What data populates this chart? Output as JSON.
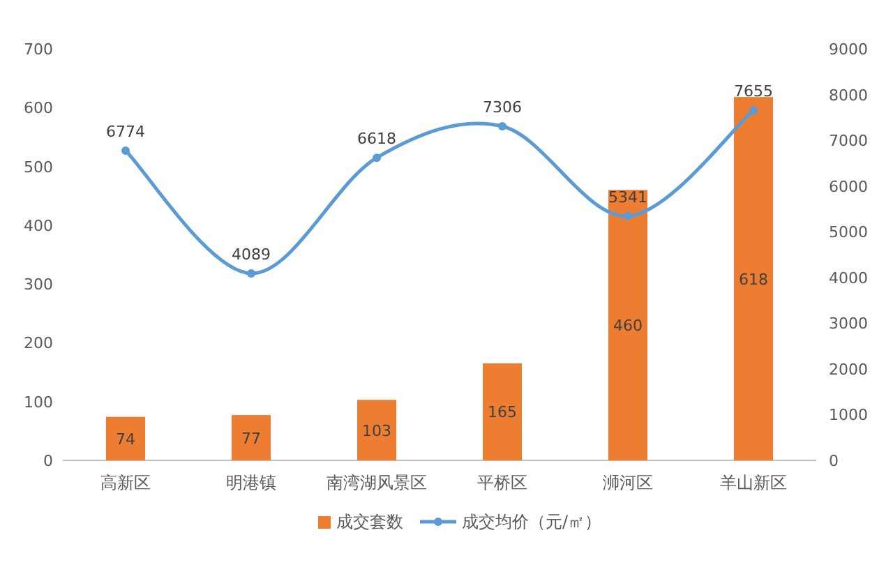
{
  "chart_data": {
    "type": "bar",
    "categories": [
      "高新区",
      "明港镇",
      "南湾湖风景区",
      "平桥区",
      "浉河区",
      "羊山新区"
    ],
    "series": [
      {
        "name": "成交套数",
        "color": "#ed7d31",
        "values": [
          74,
          77,
          103,
          165,
          460,
          618
        ]
      },
      {
        "name": "成交均价（元/㎡）",
        "type": "line",
        "axis": "y2",
        "color": "#5b9bd5",
        "marker": "circle",
        "values": [
          6774,
          4089,
          6618,
          7306,
          5341,
          7655
        ]
      }
    ],
    "ylim": [
      0,
      700
    ],
    "yticks": [
      0,
      100,
      200,
      300,
      400,
      500,
      600,
      700
    ],
    "y2lim": [
      0,
      9000
    ],
    "y2ticks": [
      0,
      1000,
      2000,
      3000,
      4000,
      5000,
      6000,
      7000,
      8000,
      9000
    ],
    "data_labels": true,
    "legend": "bottom",
    "grid": false
  }
}
